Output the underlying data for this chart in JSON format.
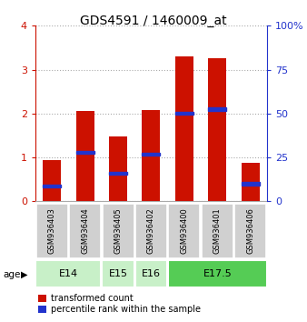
{
  "title": "GDS4591 / 1460009_at",
  "samples": [
    "GSM936403",
    "GSM936404",
    "GSM936405",
    "GSM936402",
    "GSM936400",
    "GSM936401",
    "GSM936406"
  ],
  "red_values": [
    0.93,
    2.06,
    1.47,
    2.08,
    3.3,
    3.27,
    0.87
  ],
  "blue_values": [
    0.35,
    1.12,
    0.63,
    1.07,
    2.01,
    2.1,
    0.4
  ],
  "age_groups": [
    {
      "label": "E14",
      "start": 0,
      "end": 2,
      "color": "#c8f0c8"
    },
    {
      "label": "E15",
      "start": 2,
      "end": 3,
      "color": "#c8f0c8"
    },
    {
      "label": "E16",
      "start": 3,
      "end": 4,
      "color": "#c8f0c8"
    },
    {
      "label": "E17.5",
      "start": 4,
      "end": 7,
      "color": "#55cc55"
    }
  ],
  "ylim": [
    0,
    4
  ],
  "y2lim": [
    0,
    100
  ],
  "yticks": [
    0,
    1,
    2,
    3,
    4
  ],
  "y2ticks": [
    0,
    25,
    50,
    75,
    100
  ],
  "bar_color": "#cc1100",
  "blue_color": "#2233cc",
  "bar_width": 0.55,
  "legend_red": "transformed count",
  "legend_blue": "percentile rank within the sample",
  "age_label": "age",
  "title_fontsize": 10,
  "tick_fontsize": 8,
  "sample_fontsize": 6,
  "age_fontsize": 8
}
